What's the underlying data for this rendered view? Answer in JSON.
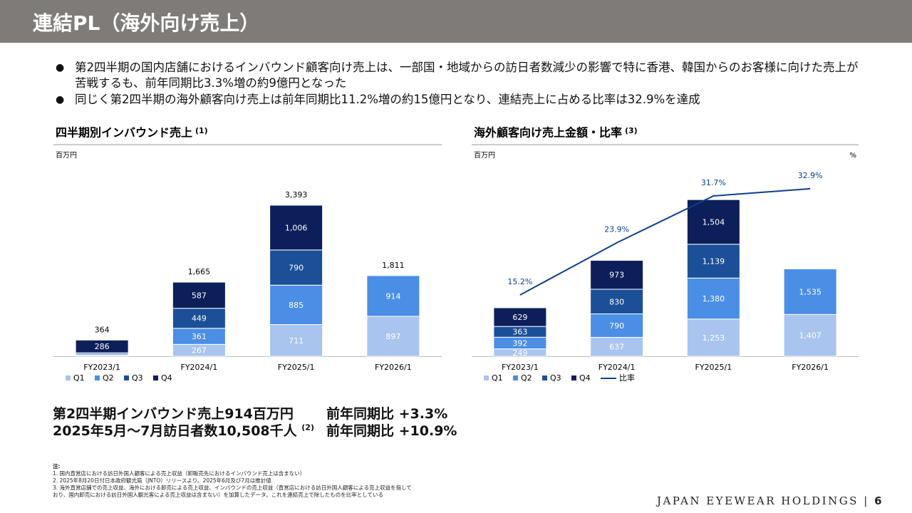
{
  "header": {
    "title": "連結PL（海外向け売上）"
  },
  "bullets": [
    "第2四半期の国内店舗におけるインバウンド顧客向け売上は、一部国・地域からの訪日者数減少の影響で特に香港、韓国からのお客様に向けた売上が苦戦するも、前年同期比3.3%増の約9億円となった",
    "同じく第2四半期の海外顧客向け売上は前年同期比11.2%増の約15億円となり、連結売上に占める比率は32.9%を達成"
  ],
  "chart_data": [
    {
      "type": "stacked_bar",
      "title": "四半期別インバウンド売上",
      "title_note": "(1)",
      "unit": "百万円",
      "categories": [
        "FY2023/1",
        "FY2024/1",
        "FY2025/1",
        "FY2026/1"
      ],
      "ylim": [
        0,
        4800
      ],
      "series": [
        {
          "name": "Q1",
          "color": "#a9c4ef",
          "values": [
            22,
            267,
            711,
            897
          ],
          "value_labels": [
            null,
            "267",
            "711",
            "897"
          ]
        },
        {
          "name": "Q2",
          "color": "#4a8ee6",
          "values": [
            26,
            361,
            885,
            914
          ],
          "value_labels": [
            null,
            "361",
            "885",
            "914"
          ]
        },
        {
          "name": "Q3",
          "color": "#1b4f98",
          "values": [
            30,
            449,
            790,
            null
          ],
          "value_labels": [
            null,
            "449",
            "790",
            null
          ]
        },
        {
          "name": "Q4",
          "color": "#0d1f5a",
          "values": [
            286,
            587,
            1006,
            null
          ],
          "value_labels": [
            "286",
            "587",
            "1,006",
            null
          ]
        }
      ],
      "totals": [
        364,
        1665,
        3393,
        1811
      ],
      "total_labels": [
        "364",
        "1,665",
        "3,393",
        "1,811"
      ]
    },
    {
      "type": "stacked_bar_line",
      "title": "海外顧客向け売上金額・比率",
      "title_note": "(3)",
      "unit": "百万円",
      "unit2": "%",
      "categories": [
        "FY2023/1",
        "FY2024/1",
        "FY2025/1",
        "FY2026/1"
      ],
      "ylim": [
        0,
        7200
      ],
      "y2lim": [
        5,
        40.6
      ],
      "series": [
        {
          "name": "Q1",
          "color": "#a9c4ef",
          "values": [
            249,
            637,
            1253,
            1407
          ],
          "value_labels": [
            "249",
            "637",
            "1,253",
            "1,407"
          ]
        },
        {
          "name": "Q2",
          "color": "#4a8ee6",
          "values": [
            392,
            790,
            1380,
            1535
          ],
          "value_labels": [
            "392",
            "790",
            "1,380",
            "1,535"
          ]
        },
        {
          "name": "Q3",
          "color": "#1b4f98",
          "values": [
            363,
            830,
            1139,
            null
          ],
          "value_labels": [
            "363",
            "830",
            "1,139",
            null
          ]
        },
        {
          "name": "Q4",
          "color": "#0d1f5a",
          "values": [
            629,
            973,
            1504,
            null
          ],
          "value_labels": [
            "629",
            "973",
            "1,504",
            null
          ]
        },
        {
          "name": "比率",
          "color": "#0d3f8f",
          "axis": "y2",
          "values": [
            15.2,
            23.9,
            31.7,
            32.9
          ],
          "value_labels": [
            "15.2%",
            "23.9%",
            "31.7%",
            "32.9%"
          ]
        }
      ]
    }
  ],
  "highlights": [
    {
      "text": "第2四半期インバウンド売上914百万円",
      "yoy": "前年同期比 +3.3%"
    },
    {
      "text": "2025年5月～7月訪日者数10,508千人",
      "note": "(2)",
      "yoy": "前年同期比 +10.9%"
    }
  ],
  "notes": {
    "label": "注:",
    "items": [
      "1. 国内直営店における訪日外国人顧客による売上収益（卸販売先におけるインバウンド売上は含まない）",
      "2. 2025年8月20日付日本政府観光局（JNTO）リリースより。2025年6月及び7月は推計値",
      "3. 海外直営店舗での売上収益、海外における卸売による売上収益、インバウンドの売上収益（直営店における訪日外国人顧客による売上収益を指しており、国内卸売における訪日外国人観光客による売上収益は含まない）を加算したデータ。これを連結売上で除したものを比率としている"
    ]
  },
  "footer": {
    "company": "JAPAN EYEWEAR HOLDINGS",
    "page": "6"
  }
}
